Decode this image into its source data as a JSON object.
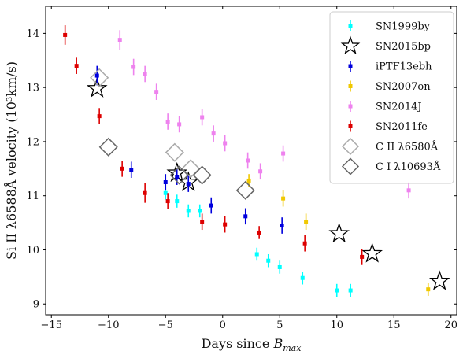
{
  "chart_data": {
    "type": "scatter",
    "xlabel": "Days since B_max",
    "ylabel": "Si II λ6588Å velocity (10³km/s)",
    "xlim": [
      -15.5,
      20.5
    ],
    "ylim": [
      8.8,
      14.5
    ],
    "xticks": [
      -15,
      -10,
      -5,
      0,
      5,
      10,
      15,
      20
    ],
    "yticks": [
      9,
      10,
      11,
      12,
      13,
      14
    ],
    "legend_position": "top-right",
    "series": [
      {
        "name": "SN1999by",
        "color": "#00ffff",
        "marker": "errorbar-square",
        "points": [
          {
            "x": -5.0,
            "y": 11.05,
            "err": 0.12
          },
          {
            "x": -4.0,
            "y": 10.9,
            "err": 0.12
          },
          {
            "x": -3.0,
            "y": 10.72,
            "err": 0.12
          },
          {
            "x": -2.0,
            "y": 10.72,
            "err": 0.12
          },
          {
            "x": 3.0,
            "y": 9.92,
            "err": 0.12
          },
          {
            "x": 4.0,
            "y": 9.8,
            "err": 0.12
          },
          {
            "x": 5.0,
            "y": 9.68,
            "err": 0.12
          },
          {
            "x": 7.0,
            "y": 9.48,
            "err": 0.12
          },
          {
            "x": 10.0,
            "y": 9.25,
            "err": 0.12
          },
          {
            "x": 11.2,
            "y": 9.25,
            "err": 0.12
          }
        ]
      },
      {
        "name": "SN2015bp",
        "color": "#000000",
        "marker": "star",
        "points": [
          {
            "x": -11.0,
            "y": 12.98
          },
          {
            "x": -4.0,
            "y": 11.42
          },
          {
            "x": -3.0,
            "y": 11.25
          },
          {
            "x": 10.2,
            "y": 10.3
          },
          {
            "x": 13.1,
            "y": 9.93
          },
          {
            "x": 19.0,
            "y": 9.42
          }
        ]
      },
      {
        "name": "iPTF13ebh",
        "color": "#0000dd",
        "marker": "errorbar-square",
        "points": [
          {
            "x": -11.0,
            "y": 13.22,
            "err": 0.18
          },
          {
            "x": -8.0,
            "y": 11.48,
            "err": 0.15
          },
          {
            "x": -5.0,
            "y": 11.25,
            "err": 0.15
          },
          {
            "x": -4.0,
            "y": 11.35,
            "err": 0.15
          },
          {
            "x": -3.0,
            "y": 11.22,
            "err": 0.15
          },
          {
            "x": -1.0,
            "y": 10.82,
            "err": 0.15
          },
          {
            "x": 2.0,
            "y": 10.62,
            "err": 0.15
          },
          {
            "x": 5.2,
            "y": 10.45,
            "err": 0.15
          }
        ]
      },
      {
        "name": "SN2007on",
        "color": "#f0c800",
        "marker": "errorbar-square",
        "points": [
          {
            "x": 2.3,
            "y": 11.28,
            "err": 0.12
          },
          {
            "x": 5.3,
            "y": 10.95,
            "err": 0.15
          },
          {
            "x": 7.3,
            "y": 10.52,
            "err": 0.15
          },
          {
            "x": 18.0,
            "y": 9.27,
            "err": 0.12
          }
        ]
      },
      {
        "name": "SN2014J",
        "color": "#ee82ee",
        "marker": "errorbar-square",
        "points": [
          {
            "x": -9.0,
            "y": 13.88,
            "err": 0.18
          },
          {
            "x": -7.8,
            "y": 13.38,
            "err": 0.15
          },
          {
            "x": -6.8,
            "y": 13.25,
            "err": 0.15
          },
          {
            "x": -5.8,
            "y": 12.92,
            "err": 0.15
          },
          {
            "x": -4.8,
            "y": 12.37,
            "err": 0.15
          },
          {
            "x": -3.8,
            "y": 12.32,
            "err": 0.15
          },
          {
            "x": -1.8,
            "y": 12.45,
            "err": 0.15
          },
          {
            "x": -0.8,
            "y": 12.15,
            "err": 0.15
          },
          {
            "x": 0.2,
            "y": 11.97,
            "err": 0.15
          },
          {
            "x": 2.2,
            "y": 11.65,
            "err": 0.15
          },
          {
            "x": 3.3,
            "y": 11.45,
            "err": 0.15
          },
          {
            "x": 5.3,
            "y": 11.78,
            "err": 0.15
          },
          {
            "x": 16.3,
            "y": 11.1,
            "err": 0.15
          }
        ]
      },
      {
        "name": "SN2011fe",
        "color": "#dd0000",
        "marker": "errorbar-square",
        "points": [
          {
            "x": -13.8,
            "y": 13.97,
            "err": 0.18
          },
          {
            "x": -12.8,
            "y": 13.4,
            "err": 0.15
          },
          {
            "x": -10.8,
            "y": 12.47,
            "err": 0.15
          },
          {
            "x": -8.8,
            "y": 11.5,
            "err": 0.15
          },
          {
            "x": -6.8,
            "y": 11.05,
            "err": 0.18
          },
          {
            "x": -4.8,
            "y": 10.9,
            "err": 0.15
          },
          {
            "x": -1.8,
            "y": 10.52,
            "err": 0.15
          },
          {
            "x": 0.2,
            "y": 10.47,
            "err": 0.15
          },
          {
            "x": 3.2,
            "y": 10.32,
            "err": 0.12
          },
          {
            "x": 7.2,
            "y": 10.12,
            "err": 0.15
          },
          {
            "x": 12.2,
            "y": 9.87,
            "err": 0.15
          }
        ]
      },
      {
        "name": "C II λ6580Å",
        "color": "#aaaaaa",
        "marker": "diamond",
        "points": [
          {
            "x": -10.8,
            "y": 13.18
          },
          {
            "x": -4.2,
            "y": 11.8
          },
          {
            "x": -2.8,
            "y": 11.5
          }
        ]
      },
      {
        "name": "C I λ10693Å",
        "color": "#666666",
        "marker": "diamond",
        "points": [
          {
            "x": -10.0,
            "y": 11.9
          },
          {
            "x": -3.8,
            "y": 11.38
          },
          {
            "x": -1.8,
            "y": 11.38
          },
          {
            "x": 2.0,
            "y": 11.1
          }
        ]
      }
    ]
  }
}
